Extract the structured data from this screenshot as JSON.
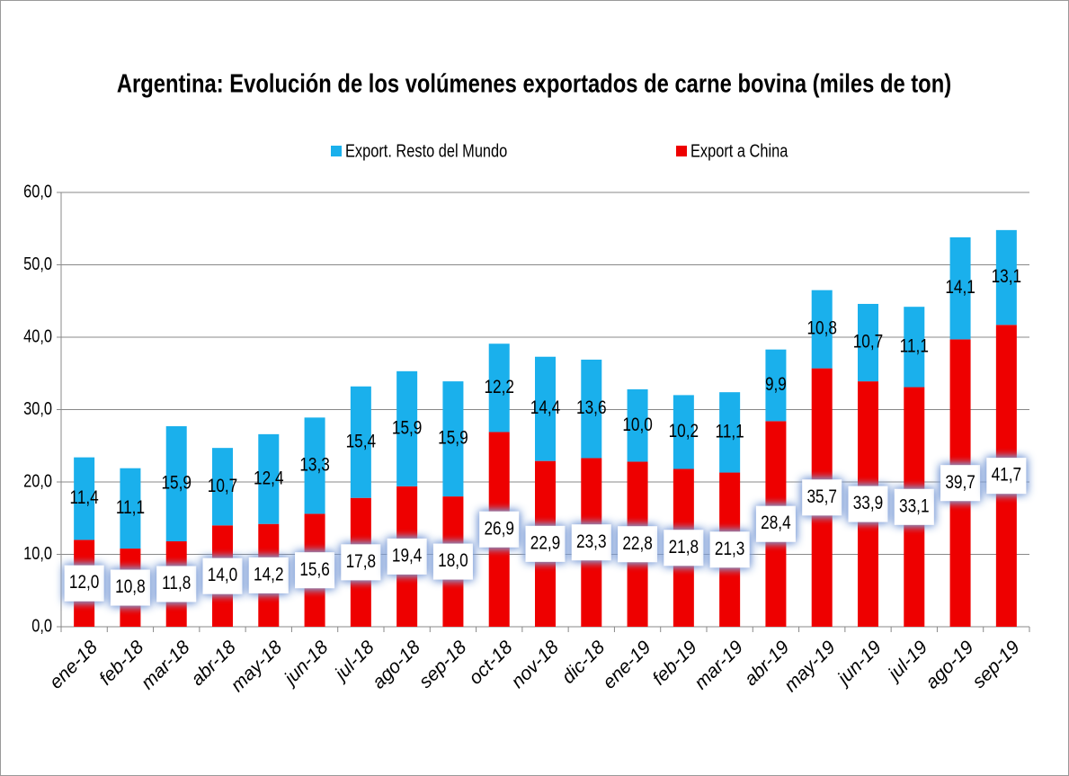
{
  "chart_data": {
    "type": "stacked_bar",
    "title": "Argentina: Evolución de los volúmenes exportados de carne bovina (miles de ton)",
    "categories": [
      "ene-18",
      "feb-18",
      "mar-18",
      "abr-18",
      "may-18",
      "jun-18",
      "jul-18",
      "ago-18",
      "sep-18",
      "oct-18",
      "nov-18",
      "dic-18",
      "ene-19",
      "feb-19",
      "mar-19",
      "abr-19",
      "may-19",
      "jun-19",
      "jul-19",
      "ago-19",
      "sep-19"
    ],
    "series": [
      {
        "name": "Export a China",
        "color": "#ee0000",
        "values": [
          12.0,
          10.8,
          11.8,
          14.0,
          14.2,
          15.6,
          17.8,
          19.4,
          18.0,
          26.9,
          22.9,
          23.3,
          22.8,
          21.8,
          21.3,
          28.4,
          35.7,
          33.9,
          33.1,
          39.7,
          41.7
        ],
        "value_labels": [
          "12,0",
          "10,8",
          "11,8",
          "14,0",
          "14,2",
          "15,6",
          "17,8",
          "19,4",
          "18,0",
          "26,9",
          "22,9",
          "23,3",
          "22,8",
          "21,8",
          "21,3",
          "28,4",
          "35,7",
          "33,9",
          "33,1",
          "39,7",
          "41,7"
        ]
      },
      {
        "name": "Export. Resto del Mundo",
        "color": "#1ab0ec",
        "values": [
          11.4,
          11.1,
          15.9,
          10.7,
          12.4,
          13.3,
          15.4,
          15.9,
          15.9,
          12.2,
          14.4,
          13.6,
          10.0,
          10.2,
          11.1,
          9.9,
          10.8,
          10.7,
          11.1,
          14.1,
          13.1
        ],
        "value_labels": [
          "11,4",
          "11,1",
          "15,9",
          "10,7",
          "12,4",
          "13,3",
          "15,4",
          "15,9",
          "15,9",
          "12,2",
          "14,4",
          "13,6",
          "10,0",
          "10,2",
          "11,1",
          "9,9",
          "10,8",
          "10,7",
          "11,1",
          "14,1",
          "13,1"
        ]
      }
    ],
    "ylim": [
      0,
      60
    ],
    "yticks": [
      {
        "value": 0,
        "label": "0,0"
      },
      {
        "value": 10,
        "label": "10,0"
      },
      {
        "value": 20,
        "label": "20,0"
      },
      {
        "value": 30,
        "label": "30,0"
      },
      {
        "value": 40,
        "label": "40,0"
      },
      {
        "value": 50,
        "label": "50,0"
      },
      {
        "value": 60,
        "label": "60,0"
      }
    ],
    "grid": true
  }
}
